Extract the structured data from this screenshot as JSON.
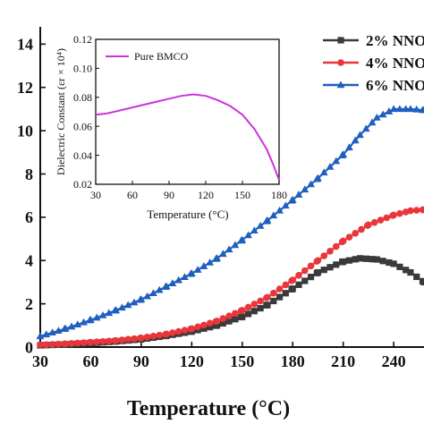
{
  "chart_data": [
    {
      "type": "line",
      "xlabel": "Temperature (°C)",
      "ylabel": "",
      "xlim": [
        30,
        258
      ],
      "ylim": [
        0,
        14.8
      ],
      "xticks": [
        30,
        60,
        90,
        120,
        150,
        180,
        210,
        240
      ],
      "yticks": [
        0,
        2,
        4,
        6,
        8,
        10,
        12,
        14
      ],
      "grid": false,
      "legend_position": "top-right",
      "series": [
        {
          "name": "2% NNO",
          "color": "#3a3a3a",
          "marker": "square",
          "x": [
            30,
            45,
            60,
            75,
            90,
            105,
            120,
            135,
            150,
            165,
            180,
            195,
            210,
            220,
            230,
            240,
            250,
            258
          ],
          "y": [
            0.08,
            0.12,
            0.18,
            0.26,
            0.36,
            0.52,
            0.72,
            1.0,
            1.4,
            1.95,
            2.7,
            3.45,
            3.95,
            4.1,
            4.05,
            3.85,
            3.45,
            3.0
          ]
        },
        {
          "name": "4% NNO",
          "color": "#e8363a",
          "marker": "circle",
          "x": [
            30,
            45,
            60,
            75,
            90,
            105,
            120,
            135,
            150,
            165,
            180,
            195,
            210,
            225,
            240,
            250,
            258
          ],
          "y": [
            0.1,
            0.15,
            0.22,
            0.3,
            0.42,
            0.6,
            0.85,
            1.2,
            1.7,
            2.3,
            3.1,
            4.0,
            4.9,
            5.65,
            6.1,
            6.3,
            6.35
          ]
        },
        {
          "name": "6% NNO",
          "color": "#1f5fbf",
          "marker": "triangle",
          "x": [
            30,
            45,
            60,
            75,
            90,
            105,
            120,
            135,
            150,
            165,
            180,
            195,
            210,
            220,
            230,
            240,
            250,
            258
          ],
          "y": [
            0.5,
            0.85,
            1.25,
            1.7,
            2.2,
            2.8,
            3.4,
            4.1,
            4.95,
            5.85,
            6.8,
            7.8,
            8.9,
            9.8,
            10.6,
            11.0,
            11.0,
            10.95
          ]
        }
      ]
    },
    {
      "type": "line",
      "xlabel": "Temperature (°C)",
      "ylabel": "Dielectric Constant (εr × 10⁴)",
      "xlim": [
        30,
        180
      ],
      "ylim": [
        0.02,
        0.12
      ],
      "xticks": [
        30,
        60,
        90,
        120,
        150,
        180
      ],
      "yticks": [
        0.02,
        0.04,
        0.06,
        0.08,
        0.1,
        0.12
      ],
      "grid": false,
      "legend_position": "top-left",
      "series": [
        {
          "name": "Pure BMCO",
          "color": "#cc33dd",
          "marker": "none",
          "x": [
            30,
            40,
            50,
            60,
            70,
            80,
            90,
            100,
            110,
            120,
            130,
            140,
            150,
            160,
            170,
            175,
            180
          ],
          "y": [
            0.068,
            0.069,
            0.071,
            0.073,
            0.075,
            0.077,
            0.079,
            0.081,
            0.082,
            0.081,
            0.078,
            0.074,
            0.068,
            0.058,
            0.044,
            0.034,
            0.023
          ]
        }
      ]
    }
  ]
}
